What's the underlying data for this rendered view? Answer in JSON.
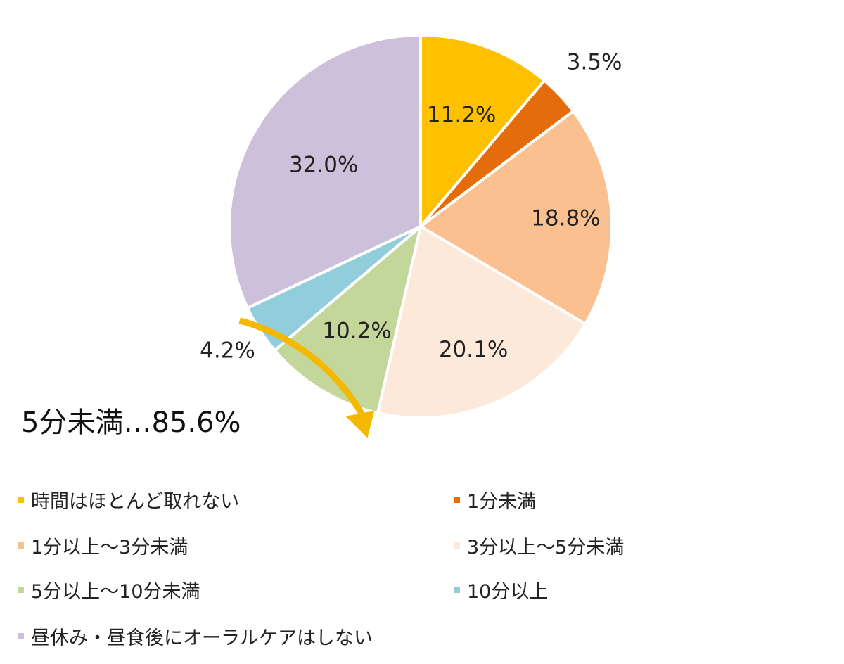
{
  "chart_data": {
    "type": "pie",
    "categories": [
      "時間はほとんど取れない",
      "1分未満",
      "1分以上～3分未満",
      "3分以上～5分未満",
      "5分以上～10分未満",
      "10分以上",
      "昼休み・昼食後にオーラルケアはしない"
    ],
    "values": [
      11.2,
      3.5,
      18.8,
      20.1,
      10.2,
      4.2,
      32.0
    ],
    "value_labels": [
      "11.2%",
      "3.5%",
      "18.8%",
      "20.1%",
      "10.2%",
      "4.2%",
      "32.0%"
    ],
    "colors": [
      "#ffc000",
      "#e46c0a",
      "#fac090",
      "#fde9d9",
      "#c4d79b",
      "#92cddc",
      "#ccc0da"
    ],
    "annotation": "5分未満…85.6%",
    "bracket_color": "#f5b800",
    "legend_placement": "bottom"
  }
}
